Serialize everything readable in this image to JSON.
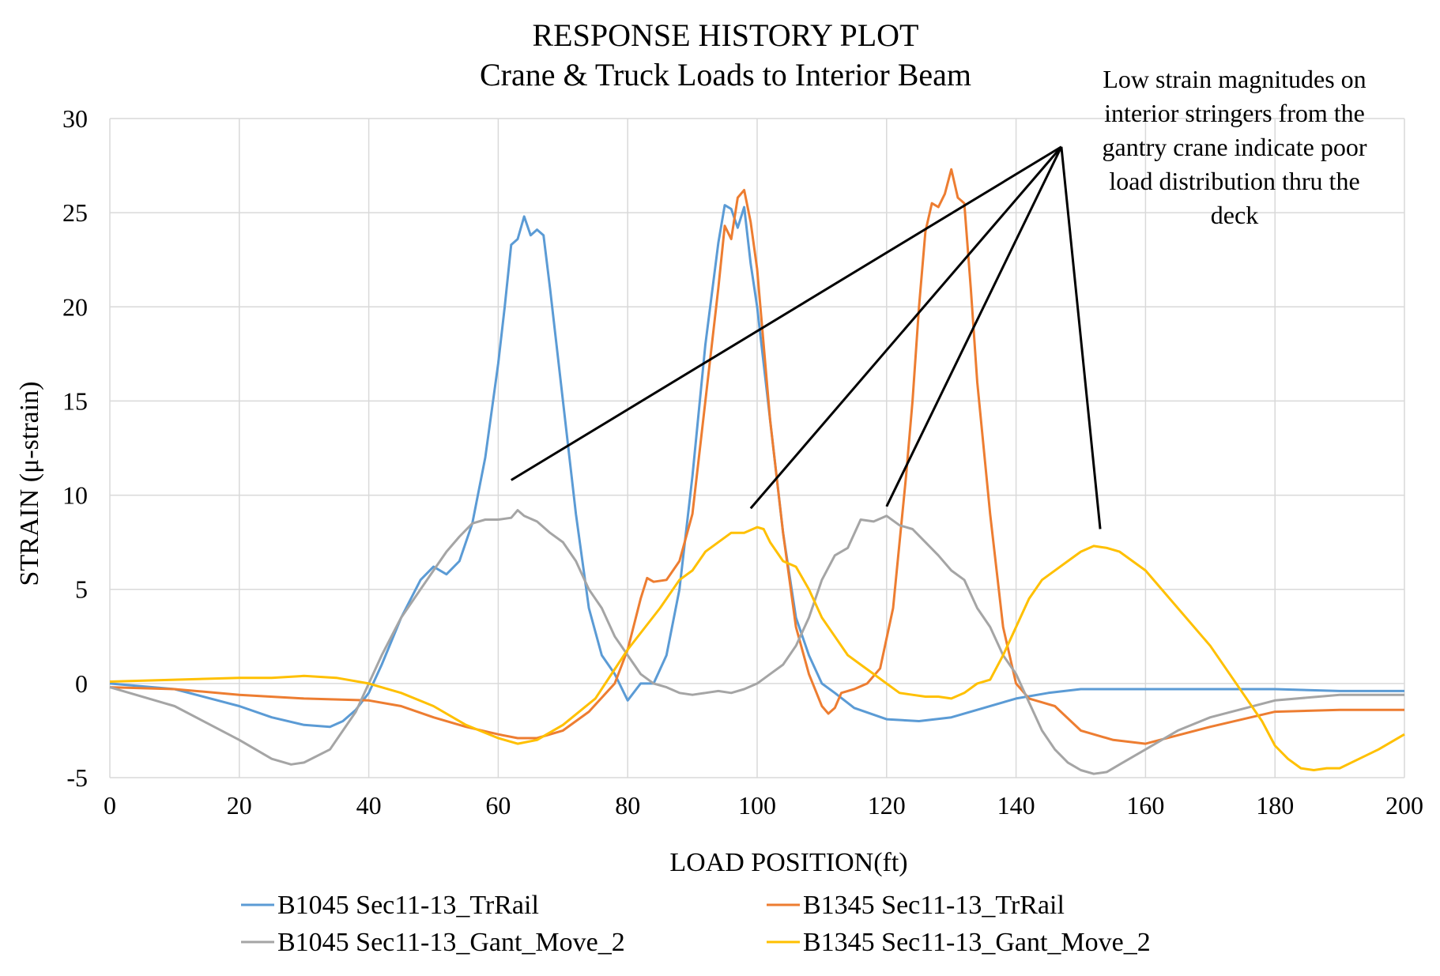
{
  "chart_data": {
    "type": "line",
    "title": "RESPONSE HISTORY PLOT",
    "subtitle": "Crane & Truck Loads to Interior Beam",
    "xlabel": "LOAD POSITION(ft)",
    "ylabel": "STRAIN (μ-strain)",
    "xlim": [
      0,
      200
    ],
    "ylim": [
      -5,
      30
    ],
    "xticks": [
      0,
      20,
      40,
      60,
      80,
      100,
      120,
      140,
      160,
      180,
      200
    ],
    "yticks": [
      -5,
      0,
      5,
      10,
      15,
      20,
      25,
      30
    ],
    "grid": true,
    "legend_position": "bottom",
    "annotation": {
      "lines": [
        "Low strain magnitudes on",
        "interior stringers from the",
        "gantry crane indicate poor",
        "load distribution thru the",
        "deck"
      ],
      "origin": [
        147,
        28.5
      ],
      "targets": [
        [
          62,
          10.8
        ],
        [
          99,
          9.3
        ],
        [
          120,
          9.4
        ],
        [
          153,
          8.2
        ]
      ]
    },
    "series": [
      {
        "name": "B1045 Sec11-13_TrRail",
        "color": "#5b9bd5",
        "x": [
          0,
          10,
          20,
          25,
          30,
          34,
          36,
          38,
          40,
          42,
          45,
          48,
          50,
          52,
          54,
          56,
          58,
          60,
          61,
          62,
          63,
          64,
          65,
          66,
          67,
          68,
          70,
          72,
          74,
          76,
          78,
          80,
          82,
          84,
          86,
          88,
          90,
          92,
          94,
          95,
          96,
          97,
          98,
          99,
          100,
          102,
          104,
          106,
          108,
          110,
          112,
          115,
          120,
          125,
          130,
          135,
          140,
          145,
          150,
          160,
          170,
          180,
          190,
          200
        ],
        "y": [
          0,
          -0.3,
          -1.2,
          -1.8,
          -2.2,
          -2.3,
          -2.0,
          -1.4,
          -0.5,
          1.0,
          3.5,
          5.5,
          6.2,
          5.8,
          6.5,
          8.5,
          12,
          17,
          20,
          23.3,
          23.6,
          24.8,
          23.8,
          24.1,
          23.8,
          21,
          15,
          9,
          4,
          1.5,
          0.5,
          -0.9,
          0,
          0,
          1.5,
          5,
          11,
          18,
          23.4,
          25.4,
          25.2,
          24.2,
          25.3,
          22.3,
          20,
          14,
          8,
          3.5,
          1.5,
          0,
          -0.5,
          -1.3,
          -1.9,
          -2.0,
          -1.8,
          -1.3,
          -0.8,
          -0.5,
          -0.3,
          -0.3,
          -0.3,
          -0.3,
          -0.4,
          -0.4
        ]
      },
      {
        "name": "B1345 Sec11-13_TrRail",
        "color": "#ed7d31",
        "x": [
          0,
          10,
          20,
          30,
          40,
          45,
          50,
          55,
          60,
          63,
          66,
          70,
          74,
          78,
          80,
          82,
          83,
          84,
          86,
          88,
          90,
          92,
          94,
          95,
          96,
          97,
          98,
          99,
          100,
          102,
          104,
          106,
          108,
          110,
          111,
          112,
          113,
          115,
          117,
          119,
          121,
          123,
          124,
          125,
          126,
          127,
          128,
          129,
          130,
          131,
          132,
          133,
          134,
          136,
          138,
          140,
          142,
          144,
          146,
          150,
          155,
          160,
          170,
          180,
          190,
          200
        ],
        "y": [
          -0.2,
          -0.3,
          -0.6,
          -0.8,
          -0.9,
          -1.2,
          -1.8,
          -2.3,
          -2.7,
          -2.9,
          -2.9,
          -2.5,
          -1.5,
          0,
          1.8,
          4.5,
          5.6,
          5.4,
          5.5,
          6.5,
          9,
          15,
          21,
          24.3,
          23.6,
          25.8,
          26.2,
          24.5,
          22,
          14,
          8,
          3,
          0.5,
          -1.2,
          -1.6,
          -1.3,
          -0.5,
          -0.3,
          0,
          0.8,
          4,
          11,
          15,
          20,
          24,
          25.5,
          25.3,
          26,
          27.3,
          25.8,
          25.5,
          21,
          16,
          9,
          3,
          0,
          -0.8,
          -1.0,
          -1.2,
          -2.5,
          -3.0,
          -3.2,
          -2.3,
          -1.5,
          -1.4,
          -1.4
        ]
      },
      {
        "name": "B1045 Sec11-13_Gant_Move_2",
        "color": "#a5a5a5",
        "x": [
          0,
          10,
          20,
          25,
          28,
          30,
          34,
          38,
          40,
          42,
          45,
          48,
          50,
          52,
          54,
          56,
          58,
          60,
          62,
          63,
          64,
          66,
          68,
          70,
          72,
          74,
          76,
          78,
          80,
          82,
          84,
          86,
          88,
          90,
          92,
          94,
          96,
          98,
          100,
          102,
          104,
          106,
          108,
          110,
          112,
          114,
          116,
          118,
          120,
          122,
          124,
          126,
          128,
          130,
          132,
          134,
          136,
          138,
          140,
          142,
          144,
          146,
          148,
          150,
          152,
          154,
          156,
          160,
          165,
          170,
          180,
          190,
          200
        ],
        "y": [
          -0.2,
          -1.2,
          -3.0,
          -4.0,
          -4.3,
          -4.2,
          -3.5,
          -1.5,
          0,
          1.5,
          3.5,
          5,
          6,
          7,
          7.8,
          8.5,
          8.7,
          8.7,
          8.8,
          9.2,
          8.9,
          8.6,
          8,
          7.5,
          6.5,
          5,
          4,
          2.5,
          1.5,
          0.5,
          0,
          -0.2,
          -0.5,
          -0.6,
          -0.5,
          -0.4,
          -0.5,
          -0.3,
          0,
          0.5,
          1,
          2,
          3.5,
          5.5,
          6.8,
          7.2,
          8.7,
          8.6,
          8.9,
          8.4,
          8.2,
          7.5,
          6.8,
          6,
          5.5,
          4,
          3,
          1.5,
          0.5,
          -1,
          -2.5,
          -3.5,
          -4.2,
          -4.6,
          -4.8,
          -4.7,
          -4.3,
          -3.5,
          -2.5,
          -1.8,
          -0.9,
          -0.6,
          -0.6
        ]
      },
      {
        "name": "B1345 Sec11-13_Gant_Move_2",
        "color": "#ffc000",
        "x": [
          0,
          10,
          20,
          25,
          30,
          35,
          40,
          45,
          50,
          55,
          60,
          63,
          66,
          70,
          75,
          80,
          85,
          88,
          90,
          92,
          94,
          96,
          98,
          100,
          101,
          102,
          104,
          106,
          108,
          110,
          112,
          114,
          116,
          118,
          120,
          122,
          124,
          126,
          128,
          130,
          132,
          134,
          136,
          138,
          140,
          142,
          144,
          146,
          148,
          150,
          152,
          154,
          156,
          160,
          165,
          170,
          175,
          178,
          180,
          182,
          184,
          186,
          188,
          190,
          193,
          196,
          200
        ],
        "y": [
          0.1,
          0.2,
          0.3,
          0.3,
          0.4,
          0.3,
          0,
          -0.5,
          -1.2,
          -2.2,
          -2.9,
          -3.2,
          -3.0,
          -2.2,
          -0.8,
          1.8,
          4.0,
          5.5,
          6,
          7,
          7.5,
          8.0,
          8.0,
          8.3,
          8.2,
          7.5,
          6.5,
          6.2,
          5,
          3.5,
          2.5,
          1.5,
          1,
          0.5,
          0,
          -0.5,
          -0.6,
          -0.7,
          -0.7,
          -0.8,
          -0.5,
          0,
          0.2,
          1.5,
          3,
          4.5,
          5.5,
          6,
          6.5,
          7,
          7.3,
          7.2,
          7,
          6,
          4,
          2,
          -0.5,
          -2.0,
          -3.3,
          -4.0,
          -4.5,
          -4.6,
          -4.5,
          -4.5,
          -4.0,
          -3.5,
          -2.7
        ]
      }
    ]
  }
}
